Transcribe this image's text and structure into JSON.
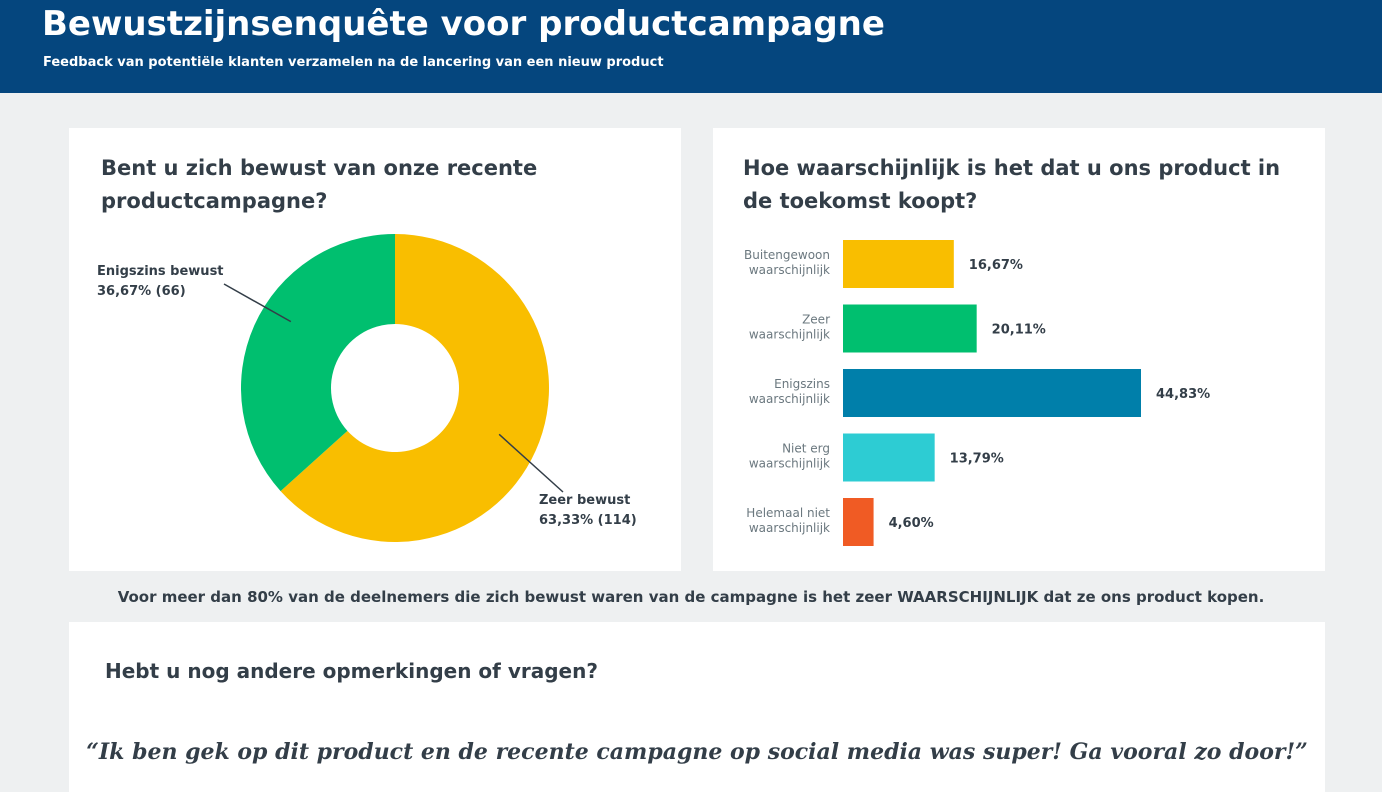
{
  "header": {
    "title": "Bewustzijnsenquête voor productcampagne",
    "subtitle": "Feedback van potentiële klanten verzamelen na de lancering van een nieuw product"
  },
  "chart_data": [
    {
      "type": "pie",
      "title": "Bent u zich bewust van onze recente productcampagne?",
      "slices": [
        {
          "name": "Zeer bewust",
          "value": 63.33,
          "count": 114,
          "label": "63,33% (114)",
          "color": "#f9be00"
        },
        {
          "name": "Enigszins bewust",
          "value": 36.67,
          "count": 66,
          "label": "36,67% (66)",
          "color": "#00bf6f"
        }
      ]
    },
    {
      "type": "bar",
      "orientation": "horizontal",
      "title": "Hoe waarschijnlijk is het dat u ons product in de toekomst koopt?",
      "categories": [
        [
          "Buitengewoon",
          "waarschijnlijk"
        ],
        [
          "Zeer",
          "waarschijnlijk"
        ],
        [
          "Enigszins",
          "waarschijnlijk"
        ],
        [
          "Niet erg",
          "waarschijnlijk"
        ],
        [
          "Helemaal niet",
          "waarschijnlijk"
        ]
      ],
      "values": [
        16.67,
        20.11,
        44.83,
        13.79,
        4.6
      ],
      "value_labels": [
        "16,67%",
        "20,11%",
        "44,83%",
        "13,79%",
        "4,60%"
      ],
      "colors": [
        "#f9be00",
        "#00bf6f",
        "#007faa",
        "#2dccd3",
        "#f05b24"
      ]
    }
  ],
  "summary": "Voor meer dan 80% van de deelnemers die zich bewust waren van de campagne is het zeer WAARSCHIJNLIJK dat ze ons product kopen.",
  "comments": {
    "question": "Hebt u nog andere opmerkingen of vragen?",
    "quote": "“Ik ben gek op dit product en de recente campagne op social media was super! Ga vooral zo door!”"
  }
}
